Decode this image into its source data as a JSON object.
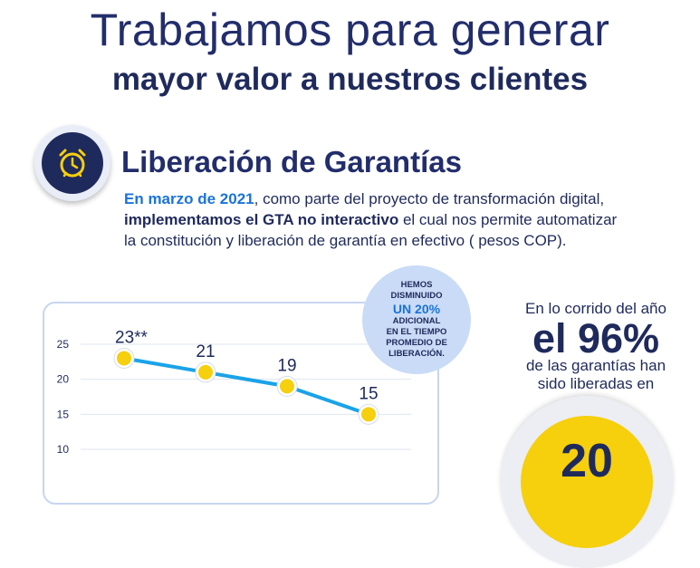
{
  "header": {
    "line1": "Trabajamos para generar",
    "line2": "mayor valor a nuestros clientes"
  },
  "section": {
    "icon": "alarm-clock-icon",
    "title": "Liberación de Garantías",
    "body": {
      "p1_highlight": "En marzo de 2021",
      "p1_rest": ", como parte del proyecto de transformación digital,",
      "p2_bold": "implementamos el GTA no interactivo",
      "p2_rest": " el cual nos permite automatizar",
      "p3": "la constitución y liberación de garantía en efectivo ( pesos COP)."
    }
  },
  "bubble": {
    "line1": "HEMOS",
    "line2": "DISMINUIDO",
    "line3": "UN 20%",
    "line4": "ADICIONAL",
    "line5": "EN EL TIEMPO",
    "line6": "PROMEDIO DE",
    "line7": "LIBERACIÓN."
  },
  "side": {
    "line1": "En lo corrido del año",
    "big": "el 96%",
    "line3": "de las garantías han",
    "line4": "sido liberadas en",
    "number": "20"
  },
  "colors": {
    "navy": "#1f2a5c",
    "accent_blue": "#1a73d9",
    "line_blue": "#1aa3e8",
    "yellow": "#f6cf0d"
  },
  "chart_data": {
    "type": "line",
    "x": [
      1,
      2,
      3,
      4
    ],
    "values": [
      23,
      21,
      19,
      15
    ],
    "point_labels": [
      "23**",
      "21",
      "19",
      "15"
    ],
    "yticks": [
      10,
      15,
      20,
      25
    ],
    "ylim": [
      7,
      27
    ],
    "grid": true
  }
}
